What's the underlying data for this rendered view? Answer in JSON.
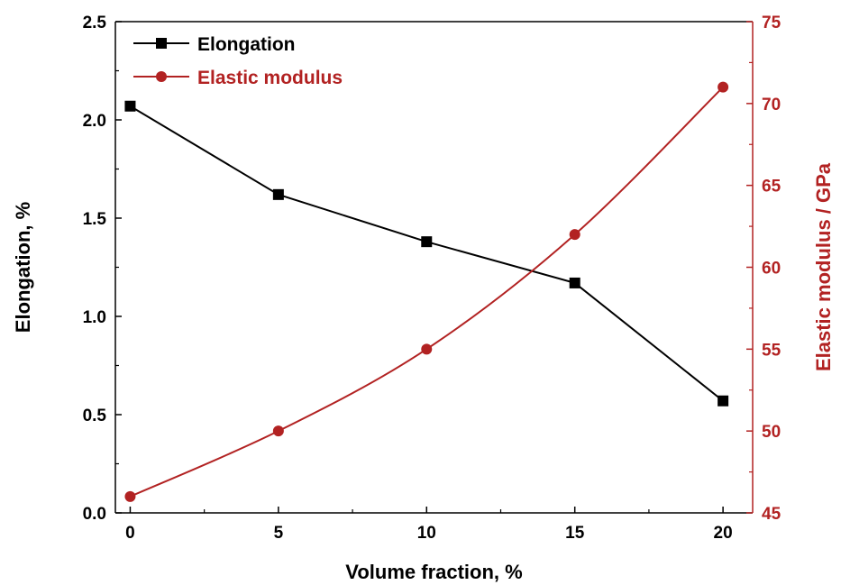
{
  "chart_data": {
    "type": "line",
    "x": [
      0,
      5,
      10,
      15,
      20
    ],
    "xlabel": "Volume fraction, %",
    "xlim": [
      -0.5,
      21
    ],
    "xticks": [
      0,
      5,
      10,
      15,
      20
    ],
    "ylabel_left": "Elongation, %",
    "ylim_left": [
      0,
      2.5
    ],
    "yticks_left": [
      "0.0",
      "0.5",
      "1.0",
      "1.5",
      "2.0",
      "2.5"
    ],
    "ylabel_right": "Elastic modulus / GPa",
    "ylim_right": [
      45,
      75
    ],
    "yticks_right": [
      "45",
      "50",
      "55",
      "60",
      "65",
      "70",
      "75"
    ],
    "grid": false,
    "legend_position": "top-left",
    "series": [
      {
        "name": "Elongation",
        "axis": "left",
        "marker": "square",
        "color": "#000000",
        "smooth": false,
        "values": [
          2.07,
          1.62,
          1.38,
          1.17,
          0.57
        ]
      },
      {
        "name": "Elastic modulus",
        "axis": "right",
        "marker": "circle",
        "color": "#b22222",
        "smooth": true,
        "values": [
          46,
          50,
          55,
          62,
          71
        ]
      }
    ],
    "colors": {
      "left_axis": "#000000",
      "right_axis": "#b22222"
    }
  }
}
